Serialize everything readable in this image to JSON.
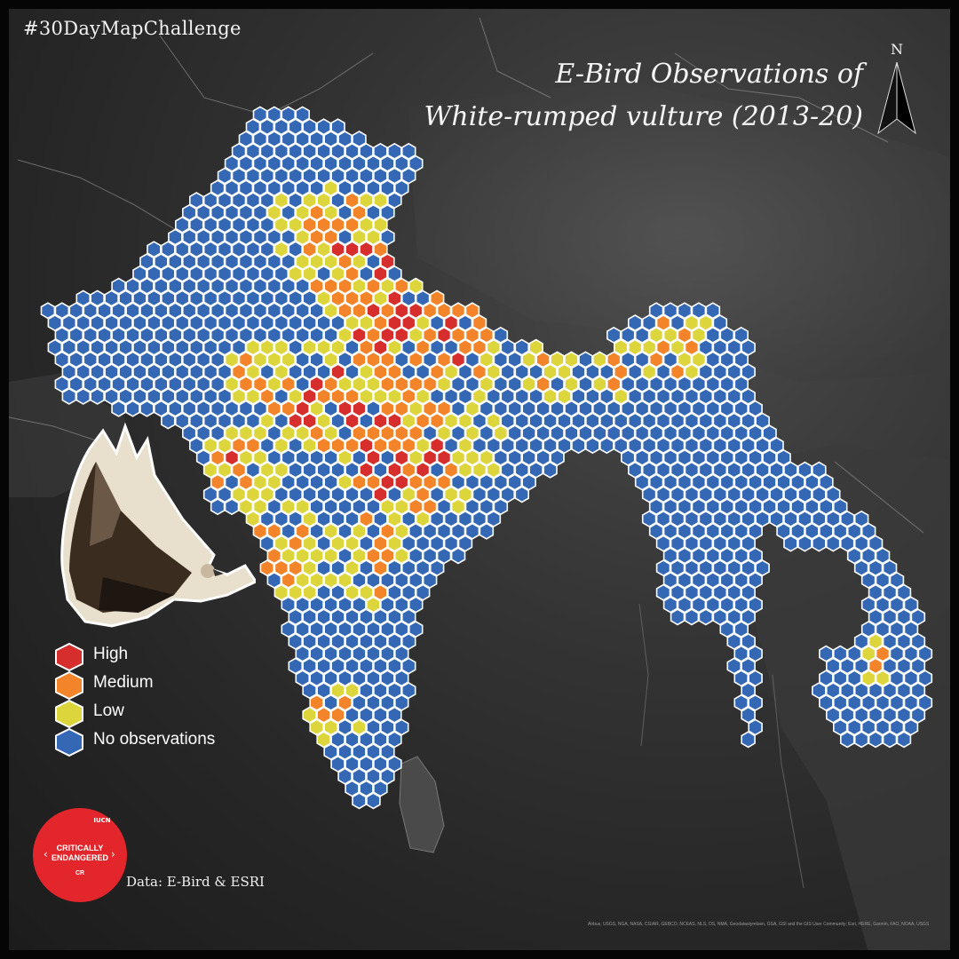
{
  "hashtag": "#30DayMapChallenge",
  "title": {
    "line1": "E-Bird Observations of",
    "line2": "White-rumped vulture (2013-20)"
  },
  "north_arrow": {
    "label": "N",
    "icon": "north-arrow-icon"
  },
  "legend": {
    "items": [
      {
        "label": "High",
        "color": "#d62d2d"
      },
      {
        "label": "Medium",
        "color": "#f4842a"
      },
      {
        "label": "Low",
        "color": "#dcd63c"
      },
      {
        "label": "No observations",
        "color": "#3468b4"
      }
    ]
  },
  "iucn_badge": {
    "status_line1": "CRITICALLY",
    "status_line2": "ENDANGERED",
    "code": "CR",
    "logo_text": "IUCN",
    "color": "#e3262b"
  },
  "data_credit": "Data: E-Bird & ESRI",
  "attribution": "Airbus, USGS, NGA, NASA, CGIAR, GEBCO, NCEAS, NLS, OS, NMA, Geodatastyrelsen, GSA, GSI and the GIS User Community; Esri, HERE, Garmin, FAO, NOAA, USGS",
  "colors": {
    "hex_outline": "#ffffff",
    "background": "#2f2f2f"
  }
}
